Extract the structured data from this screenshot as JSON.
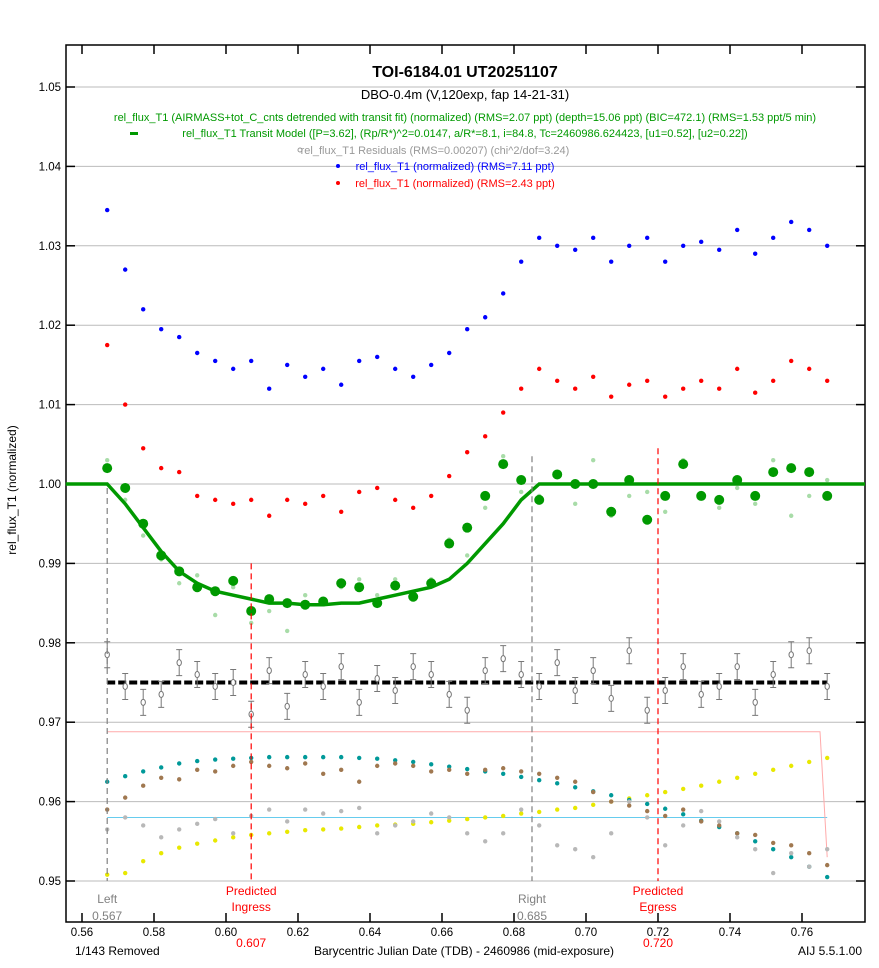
{
  "chart_data": {
    "type": "scatter",
    "title": "TOI-6184.01  UT20251107",
    "subtitle": "DBO-0.4m (V,120exp, fap 14-21-31)",
    "xlabel": "Barycentric Julian Date (TDB) - 2460986 (mid-exposure)",
    "ylabel": "rel_flux_T1 (normalized)",
    "xlim": [
      0.5555,
      0.7775
    ],
    "ylim": [
      0.9445,
      1.0575
    ],
    "x_ticks": [
      "0.56",
      "0.58",
      "0.60",
      "0.62",
      "0.64",
      "0.66",
      "0.68",
      "0.70",
      "0.72",
      "0.74",
      "0.76"
    ],
    "y_ticks": [
      "0.95",
      "0.96",
      "0.97",
      "0.98",
      "0.99",
      "1.00",
      "1.01",
      "1.02",
      "1.03",
      "1.04",
      "1.05"
    ],
    "grid": true,
    "footer_left": "1/143 Removed",
    "footer_right": "AIJ 5.5.1.00",
    "legend": [
      {
        "text": "rel_flux_T1 (AIRMASS+tot_C_cnts detrended with transit fit) (normalized) (RMS=2.07 ppt) (depth=15.06 ppt) (BIC=472.1) (RMS=1.53 ppt/5 min)",
        "color": "#009900"
      },
      {
        "text": "rel_flux_T1 Transit Model ([P=3.62], (Rp/R*)^2=0.0147, a/R*=8.1, i=84.8, Tc=2460986.624423, [u1=0.52], [u2=0.22])",
        "color": "#009900"
      },
      {
        "text": "rel_flux_T1 Residuals (RMS=0.00207) (chi^2/dof=3.24)",
        "color": "#999999"
      },
      {
        "text": "rel_flux_T1 (normalized) (RMS=7.11 ppt)",
        "color": "#0000ff"
      },
      {
        "text": "rel_flux_T1 (normalized) (RMS=2.43 ppt)",
        "color": "#ff0000"
      }
    ],
    "markers": [
      {
        "name": "left",
        "label": "Left",
        "value": "0.567",
        "x": 0.567,
        "top": 0.9995,
        "color": "#808080"
      },
      {
        "name": "right",
        "label": "Right",
        "value": "0.685",
        "x": 0.685,
        "top": 1.0035,
        "color": "#808080"
      },
      {
        "name": "predicted-ingress",
        "label": "Predicted",
        "label2": "Ingress",
        "value": "0.607",
        "x": 0.607,
        "top": 0.99,
        "color": "#ff0000"
      },
      {
        "name": "predicted-egress",
        "label": "Predicted",
        "label2": "Egress",
        "value": "0.720",
        "x": 0.72,
        "top": 1.0045,
        "color": "#ff0000"
      }
    ],
    "x": [
      0.567,
      0.572,
      0.577,
      0.582,
      0.587,
      0.592,
      0.597,
      0.602,
      0.607,
      0.612,
      0.617,
      0.622,
      0.627,
      0.632,
      0.637,
      0.642,
      0.647,
      0.652,
      0.657,
      0.662,
      0.667,
      0.672,
      0.677,
      0.682,
      0.687,
      0.692,
      0.697,
      0.702,
      0.707,
      0.712,
      0.717,
      0.722,
      0.727,
      0.732,
      0.737,
      0.742,
      0.747,
      0.752,
      0.757,
      0.762,
      0.767
    ],
    "series": [
      {
        "name": "rel_flux_T1 raw (blue)",
        "color": "#0000ff",
        "style": "dot",
        "values": [
          1.0345,
          1.027,
          1.022,
          1.0195,
          1.0185,
          1.0165,
          1.0155,
          1.0145,
          1.0155,
          1.012,
          1.015,
          1.0135,
          1.0145,
          1.0125,
          1.0155,
          1.016,
          1.0145,
          1.0135,
          1.015,
          1.0165,
          1.0195,
          1.021,
          1.024,
          1.028,
          1.031,
          1.03,
          1.0295,
          1.031,
          1.028,
          1.03,
          1.031,
          1.028,
          1.03,
          1.0305,
          1.0295,
          1.032,
          1.029,
          1.031,
          1.033,
          1.032,
          1.03
        ]
      },
      {
        "name": "rel_flux_T1 raw (red)",
        "color": "#ff0000",
        "style": "dot",
        "values": [
          1.0175,
          1.01,
          1.0045,
          1.002,
          1.0015,
          0.9985,
          0.998,
          0.9975,
          0.998,
          0.996,
          0.998,
          0.9975,
          0.9985,
          0.9965,
          0.999,
          0.9995,
          0.998,
          0.997,
          0.9985,
          1.001,
          1.004,
          1.006,
          1.009,
          1.012,
          1.0145,
          1.013,
          1.012,
          1.0135,
          1.011,
          1.0125,
          1.013,
          1.011,
          1.012,
          1.013,
          1.012,
          1.0145,
          1.0115,
          1.013,
          1.0155,
          1.0145,
          1.013
        ]
      },
      {
        "name": "detrended unbinned",
        "color": "#a8dca8",
        "style": "dot",
        "values": [
          1.003,
          0.998,
          0.9935,
          0.9905,
          0.9875,
          0.9885,
          0.9835,
          0.987,
          0.9825,
          0.984,
          0.9815,
          0.986,
          0.9855,
          0.987,
          0.988,
          0.986,
          0.988,
          0.9855,
          0.988,
          0.993,
          0.991,
          0.997,
          1.0035,
          0.999,
          0.9985,
          1.001,
          0.9975,
          1.003,
          0.996,
          0.9985,
          0.999,
          0.9965,
          1.003,
          0.9985,
          0.997,
          0.9995,
          0.9975,
          1.003,
          0.996,
          0.9985,
          1.0005
        ]
      },
      {
        "name": "detrended binned",
        "color": "#009900",
        "style": "big",
        "values": [
          1.002,
          0.9995,
          0.995,
          0.991,
          0.989,
          0.987,
          0.9865,
          0.9878,
          0.984,
          0.9855,
          0.985,
          0.9848,
          0.9852,
          0.9875,
          0.987,
          0.985,
          0.9872,
          0.9858,
          0.9875,
          0.9925,
          0.9945,
          0.9985,
          1.0025,
          1.0005,
          0.998,
          1.0012,
          1.0,
          1.0,
          0.9965,
          1.0005,
          0.9955,
          0.9985,
          1.0025,
          0.9985,
          0.998,
          1.0005,
          0.9985,
          1.0015,
          1.002,
          1.0015,
          0.9985
        ]
      },
      {
        "name": "transit model",
        "color": "#009900",
        "style": "line",
        "values": [
          1.0,
          0.9975,
          0.9945,
          0.9915,
          0.989,
          0.9875,
          0.9865,
          0.986,
          0.9855,
          0.985,
          0.985,
          0.9848,
          0.9848,
          0.985,
          0.985,
          0.9855,
          0.986,
          0.9865,
          0.987,
          0.988,
          0.99,
          0.9925,
          0.995,
          0.998,
          1.0,
          1.0,
          1.0,
          1.0,
          1.0,
          1.0,
          1.0,
          1.0,
          1.0,
          1.0,
          1.0,
          1.0,
          1.0,
          1.0,
          1.0,
          1.0,
          1.0
        ]
      },
      {
        "name": "residuals",
        "color": "#808080",
        "style": "open",
        "offset": 0.975,
        "values": [
          0.9785,
          0.9745,
          0.9725,
          0.9735,
          0.9775,
          0.976,
          0.9745,
          0.975,
          0.971,
          0.9765,
          0.972,
          0.976,
          0.9745,
          0.977,
          0.9725,
          0.9755,
          0.974,
          0.977,
          0.976,
          0.9735,
          0.9715,
          0.9765,
          0.978,
          0.976,
          0.9745,
          0.9775,
          0.974,
          0.9765,
          0.973,
          0.979,
          0.9715,
          0.974,
          0.977,
          0.9735,
          0.9745,
          0.977,
          0.9725,
          0.976,
          0.9785,
          0.979,
          0.9745
        ]
      },
      {
        "name": "airmass (teal)",
        "color": "#009999",
        "style": "dot",
        "values": [
          0.9625,
          0.9632,
          0.9638,
          0.9643,
          0.9648,
          0.9651,
          0.9653,
          0.9654,
          0.9655,
          0.9656,
          0.9656,
          0.9656,
          0.9656,
          0.9656,
          0.9655,
          0.9654,
          0.9652,
          0.965,
          0.9647,
          0.9644,
          0.9641,
          0.9638,
          0.9635,
          0.9631,
          0.9627,
          0.9623,
          0.9618,
          0.9613,
          0.9608,
          0.9602,
          0.9597,
          0.9591,
          0.9584,
          0.9576,
          0.9568,
          0.956,
          0.955,
          0.954,
          0.953,
          0.9518,
          0.9505
        ]
      },
      {
        "name": "tot_C_cnts (brown)",
        "color": "#a07850",
        "style": "dot",
        "values": [
          0.959,
          0.9605,
          0.962,
          0.963,
          0.9628,
          0.964,
          0.9638,
          0.9645,
          0.965,
          0.9645,
          0.9642,
          0.9648,
          0.9635,
          0.964,
          0.9625,
          0.9645,
          0.9648,
          0.9645,
          0.9638,
          0.964,
          0.9635,
          0.964,
          0.9642,
          0.9638,
          0.9635,
          0.963,
          0.9625,
          0.9612,
          0.96,
          0.9595,
          0.9588,
          0.9582,
          0.959,
          0.9575,
          0.957,
          0.956,
          0.9558,
          0.9548,
          0.9545,
          0.9535,
          0.952
        ]
      },
      {
        "name": "comparison (gray)",
        "color": "#b8b8b8",
        "style": "dot",
        "values": [
          0.9565,
          0.958,
          0.957,
          0.9555,
          0.9565,
          0.9572,
          0.9578,
          0.956,
          0.9582,
          0.959,
          0.9575,
          0.959,
          0.9585,
          0.9588,
          0.9592,
          0.956,
          0.957,
          0.9575,
          0.9585,
          0.958,
          0.956,
          0.955,
          0.956,
          0.959,
          0.957,
          0.9545,
          0.954,
          0.953,
          0.956,
          0.96,
          0.958,
          0.9545,
          0.957,
          0.9588,
          0.9575,
          0.9555,
          0.954,
          0.951,
          0.9535,
          0.9518,
          0.954
        ]
      },
      {
        "name": "yellow trend",
        "color": "#e8e800",
        "style": "dot",
        "values": [
          0.9508,
          0.951,
          0.9525,
          0.9535,
          0.9542,
          0.9547,
          0.9551,
          0.9555,
          0.9558,
          0.956,
          0.9562,
          0.9564,
          0.9565,
          0.9566,
          0.9568,
          0.957,
          0.9571,
          0.9572,
          0.9574,
          0.9576,
          0.9578,
          0.958,
          0.9582,
          0.9585,
          0.9587,
          0.959,
          0.9592,
          0.9596,
          0.96,
          0.9604,
          0.9608,
          0.9612,
          0.9616,
          0.962,
          0.9625,
          0.963,
          0.9635,
          0.964,
          0.9645,
          0.965,
          0.9655
        ]
      }
    ],
    "reference_lines": [
      {
        "name": "sky-baseline",
        "color": "#66ccee",
        "y": 0.958,
        "x0": 0.567,
        "x1": 0.767
      },
      {
        "name": "pink-level",
        "color": "#ffaaaa",
        "points": [
          [
            0.567,
            0.9688
          ],
          [
            0.765,
            0.9688
          ],
          [
            0.767,
            0.953
          ]
        ]
      }
    ]
  }
}
